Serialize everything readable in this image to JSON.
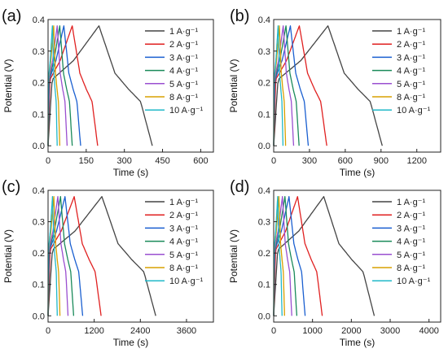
{
  "chart_data": [
    {
      "type": "line",
      "panel_label": "(a)",
      "xlabel": "Time (s)",
      "ylabel": "Potential (V)",
      "xlim": [
        0,
        650
      ],
      "ylim": [
        -0.02,
        0.4
      ],
      "xticks": [
        0,
        150,
        300,
        450,
        600
      ],
      "yticks": [
        0.0,
        0.1,
        0.2,
        0.3,
        0.4
      ],
      "legend": "top-right",
      "grid": false,
      "series": [
        {
          "name": "1 A·g⁻¹",
          "color": "#444444",
          "peak": 200,
          "end": 410
        },
        {
          "name": "2 A·g⁻¹",
          "color": "#e02020",
          "peak": 95,
          "end": 195
        },
        {
          "name": "3 A·g⁻¹",
          "color": "#1a5fd0",
          "peak": 62,
          "end": 128
        },
        {
          "name": "4 A·g⁻¹",
          "color": "#1a8a5a",
          "peak": 46,
          "end": 95
        },
        {
          "name": "5 A·g⁻¹",
          "color": "#9a4fd0",
          "peak": 36,
          "end": 75
        },
        {
          "name": "8 A·g⁻¹",
          "color": "#d8a000",
          "peak": 22,
          "end": 46
        },
        {
          "name": "10 A·g⁻¹",
          "color": "#20b8c8",
          "peak": 17,
          "end": 36
        }
      ]
    },
    {
      "type": "line",
      "panel_label": "(b)",
      "xlabel": "Time (s)",
      "ylabel": "Potential (V)",
      "xlim": [
        0,
        1400
      ],
      "ylim": [
        -0.02,
        0.4
      ],
      "xticks": [
        0,
        300,
        600,
        900,
        1200
      ],
      "yticks": [
        0.0,
        0.1,
        0.2,
        0.3,
        0.4
      ],
      "legend": "top-right",
      "grid": false,
      "series": [
        {
          "name": "1 A·g⁻¹",
          "color": "#444444",
          "peak": 455,
          "end": 910
        },
        {
          "name": "2 A·g⁻¹",
          "color": "#e02020",
          "peak": 215,
          "end": 445
        },
        {
          "name": "3 A·g⁻¹",
          "color": "#1a5fd0",
          "peak": 140,
          "end": 290
        },
        {
          "name": "4 A·g⁻¹",
          "color": "#1a8a5a",
          "peak": 103,
          "end": 213
        },
        {
          "name": "5 A·g⁻¹",
          "color": "#9a4fd0",
          "peak": 80,
          "end": 167
        },
        {
          "name": "8 A·g⁻¹",
          "color": "#d8a000",
          "peak": 48,
          "end": 100
        },
        {
          "name": "10 A·g⁻¹",
          "color": "#20b8c8",
          "peak": 37,
          "end": 78
        }
      ]
    },
    {
      "type": "line",
      "panel_label": "(c)",
      "xlabel": "Time (s)",
      "ylabel": "Potential (V)",
      "xlim": [
        0,
        4300
      ],
      "ylim": [
        -0.02,
        0.4
      ],
      "xticks": [
        0,
        1200,
        2400,
        3600
      ],
      "yticks": [
        0.0,
        0.1,
        0.2,
        0.3,
        0.4
      ],
      "legend": "top-right",
      "grid": false,
      "series": [
        {
          "name": "1 A·g⁻¹",
          "color": "#444444",
          "peak": 1400,
          "end": 2800
        },
        {
          "name": "2 A·g⁻¹",
          "color": "#e02020",
          "peak": 680,
          "end": 1380
        },
        {
          "name": "3 A·g⁻¹",
          "color": "#1a5fd0",
          "peak": 440,
          "end": 900
        },
        {
          "name": "4 A·g⁻¹",
          "color": "#1a8a5a",
          "peak": 325,
          "end": 665
        },
        {
          "name": "5 A·g⁻¹",
          "color": "#9a4fd0",
          "peak": 255,
          "end": 520
        },
        {
          "name": "8 A·g⁻¹",
          "color": "#d8a000",
          "peak": 150,
          "end": 310
        },
        {
          "name": "10 A·g⁻¹",
          "color": "#20b8c8",
          "peak": 115,
          "end": 240
        }
      ]
    },
    {
      "type": "line",
      "panel_label": "(d)",
      "xlabel": "Time (s)",
      "ylabel": "Potential (V)",
      "xlim": [
        0,
        4300
      ],
      "ylim": [
        -0.02,
        0.4
      ],
      "xticks": [
        0,
        1000,
        2000,
        3000,
        4000
      ],
      "yticks": [
        0.0,
        0.1,
        0.2,
        0.3,
        0.4
      ],
      "legend": "top-right",
      "grid": false,
      "series": [
        {
          "name": "1 A·g⁻¹",
          "color": "#444444",
          "peak": 1290,
          "end": 2590
        },
        {
          "name": "2 A·g⁻¹",
          "color": "#e02020",
          "peak": 615,
          "end": 1250
        },
        {
          "name": "3 A·g⁻¹",
          "color": "#1a5fd0",
          "peak": 395,
          "end": 810
        },
        {
          "name": "4 A·g⁻¹",
          "color": "#1a8a5a",
          "peak": 290,
          "end": 595
        },
        {
          "name": "5 A·g⁻¹",
          "color": "#9a4fd0",
          "peak": 225,
          "end": 465
        },
        {
          "name": "8 A·g⁻¹",
          "color": "#d8a000",
          "peak": 135,
          "end": 280
        },
        {
          "name": "10 A·g⁻¹",
          "color": "#20b8c8",
          "peak": 103,
          "end": 215
        }
      ]
    }
  ]
}
